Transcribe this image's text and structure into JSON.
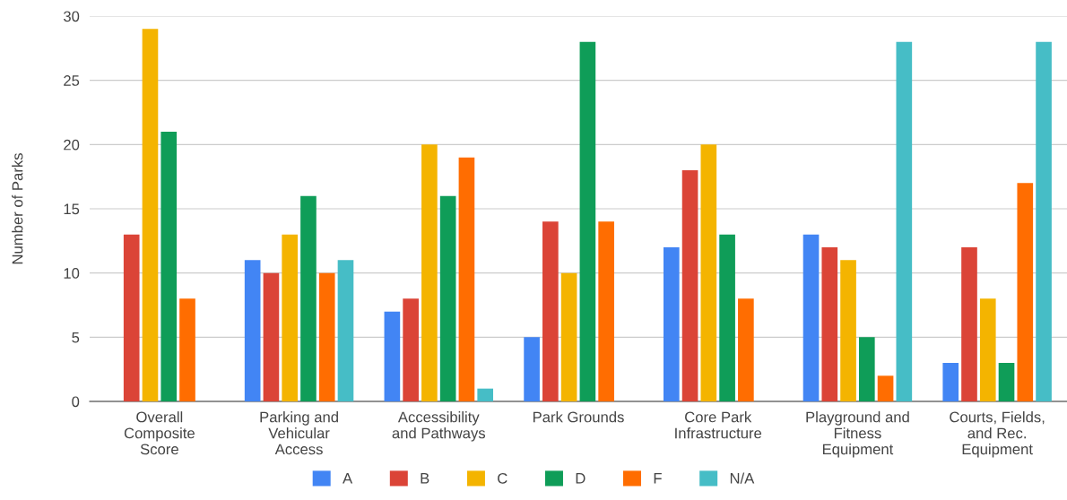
{
  "chart_data": {
    "type": "bar",
    "ylabel": "Number of Parks",
    "categories": [
      "Overall\nComposite\nScore",
      "Parking and\nVehicular\nAccess",
      "Accessibility\nand Pathways",
      "Park Grounds",
      "Core Park\nInfrastructure",
      "Playground and\nFitness\nEquipment",
      "Courts, Fields,\nand Rec.\nEquipment"
    ],
    "series": [
      {
        "name": "A",
        "color": "#4285f4",
        "values": [
          0,
          11,
          7,
          5,
          12,
          13,
          3
        ]
      },
      {
        "name": "B",
        "color": "#db4437",
        "values": [
          13,
          10,
          8,
          14,
          18,
          12,
          12
        ]
      },
      {
        "name": "C",
        "color": "#f4b400",
        "values": [
          29,
          13,
          20,
          10,
          20,
          11,
          8
        ]
      },
      {
        "name": "D",
        "color": "#0f9d58",
        "values": [
          21,
          16,
          16,
          28,
          13,
          5,
          3
        ]
      },
      {
        "name": "F",
        "color": "#ff6d01",
        "values": [
          8,
          10,
          19,
          14,
          8,
          2,
          17
        ]
      },
      {
        "name": "N/A",
        "color": "#46bdc6",
        "values": [
          0,
          11,
          1,
          0,
          0,
          28,
          28
        ]
      }
    ],
    "ylim": [
      0,
      30
    ],
    "yticks": [
      0,
      5,
      10,
      15,
      20,
      25,
      30
    ],
    "grid": "y",
    "legend": "bottom"
  }
}
